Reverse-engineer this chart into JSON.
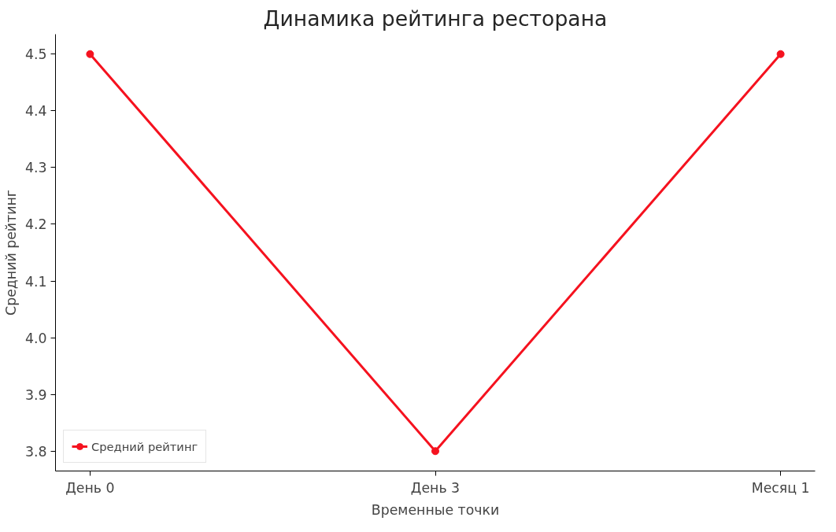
{
  "chart_data": {
    "type": "line",
    "title": "Динамика рейтинга ресторана",
    "xlabel": "Временные точки",
    "ylabel": "Средний рейтинг",
    "categories": [
      "День 0",
      "День 3",
      "Месяц 1"
    ],
    "series": [
      {
        "name": "Средний рейтинг",
        "color": "#f5121f",
        "values": [
          4.5,
          3.8,
          4.5
        ]
      }
    ],
    "ylim": [
      3.765,
      4.535
    ],
    "yticks": [
      {
        "value": 3.8,
        "label": "3.8"
      },
      {
        "value": 3.9,
        "label": "3.9"
      },
      {
        "value": 4.0,
        "label": "4.0"
      },
      {
        "value": 4.1,
        "label": "4.1"
      },
      {
        "value": 4.2,
        "label": "4.2"
      },
      {
        "value": 4.3,
        "label": "4.3"
      },
      {
        "value": 4.4,
        "label": "4.4"
      },
      {
        "value": 4.5,
        "label": "4.5"
      }
    ],
    "marker": "circle",
    "legend": "bottom left",
    "grid": false
  }
}
